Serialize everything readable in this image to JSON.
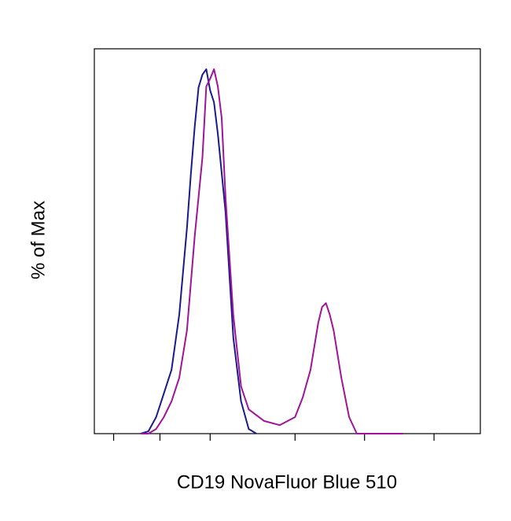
{
  "chart_data": {
    "type": "line",
    "xlabel": "CD19 NovaFluor Blue 510",
    "ylabel": "% of Max",
    "xlim": [
      0,
      100
    ],
    "ylim": [
      0,
      100
    ],
    "xticks": [
      5,
      17,
      30,
      52,
      70,
      88
    ],
    "series": [
      {
        "color": "#1a1a8c",
        "x": [
          12,
          14,
          16,
          18,
          20,
          22,
          24,
          25,
          26,
          27,
          28,
          29,
          30,
          31,
          32,
          34,
          36,
          38,
          40,
          42
        ],
        "values": [
          0,
          0.6,
          4.3,
          10.4,
          16.6,
          30.9,
          53.4,
          67.5,
          79.8,
          90,
          93.3,
          94.7,
          89.2,
          86.1,
          77.9,
          57.5,
          24.9,
          8.4,
          1.2,
          0
        ]
      },
      {
        "color": "#a0139a",
        "x": [
          12,
          14,
          16,
          18,
          20,
          22,
          24,
          26,
          28,
          29,
          30,
          31,
          32,
          33,
          34,
          36,
          38,
          40,
          44,
          48,
          52,
          54,
          56,
          58,
          59,
          60,
          61,
          62,
          64,
          66,
          68,
          70,
          72,
          80
        ],
        "values": [
          0,
          0,
          1.2,
          4.3,
          8.4,
          14.5,
          26.8,
          51.3,
          71.8,
          90.2,
          92.2,
          94.7,
          90.2,
          82,
          61.3,
          30.7,
          12.3,
          6.3,
          3.3,
          2.2,
          4.3,
          9.4,
          16.6,
          28.8,
          32.9,
          33.9,
          30.9,
          26.8,
          14.5,
          4.3,
          0,
          0,
          0,
          0
        ]
      }
    ]
  }
}
